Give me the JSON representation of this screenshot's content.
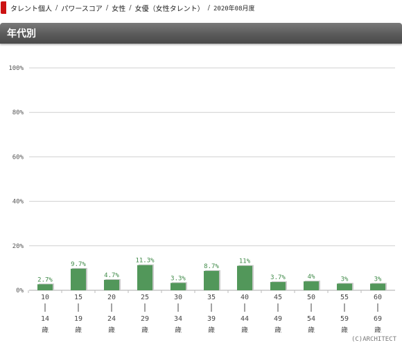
{
  "breadcrumb": [
    "タレント個人",
    "パワースコア",
    "女性",
    "女優（女性タレント）",
    "2020年08月度"
  ],
  "section": {
    "title": "年代別"
  },
  "chart_data": {
    "type": "bar",
    "categories": [
      {
        "from": "10",
        "to": "14",
        "unit": "歳"
      },
      {
        "from": "15",
        "to": "19",
        "unit": "歳"
      },
      {
        "from": "20",
        "to": "24",
        "unit": "歳"
      },
      {
        "from": "25",
        "to": "29",
        "unit": "歳"
      },
      {
        "from": "30",
        "to": "34",
        "unit": "歳"
      },
      {
        "from": "35",
        "to": "39",
        "unit": "歳"
      },
      {
        "from": "40",
        "to": "44",
        "unit": "歳"
      },
      {
        "from": "45",
        "to": "49",
        "unit": "歳"
      },
      {
        "from": "50",
        "to": "54",
        "unit": "歳"
      },
      {
        "from": "55",
        "to": "59",
        "unit": "歳"
      },
      {
        "from": "60",
        "to": "69",
        "unit": "歳"
      }
    ],
    "values": [
      2.7,
      9.7,
      4.7,
      11.3,
      3.3,
      8.7,
      11,
      3.7,
      4,
      3,
      3
    ],
    "value_labels": [
      "2.7%",
      "9.7%",
      "4.7%",
      "11.3%",
      "3.3%",
      "8.7%",
      "11%",
      "3.7%",
      "4%",
      "3%",
      "3%"
    ],
    "yticks": [
      0,
      20,
      40,
      60,
      80,
      100
    ],
    "ytick_labels": [
      "0%",
      "20%",
      "40%",
      "60%",
      "80%",
      "100%"
    ],
    "ylim": [
      0,
      100
    ],
    "grid": true,
    "colors": {
      "bar": "#52975a",
      "bar_shadow": "#c9c9c9",
      "label": "#3f8a48",
      "grid": "#cfcfcf"
    }
  },
  "copyright": "(C)ARCHITECT"
}
